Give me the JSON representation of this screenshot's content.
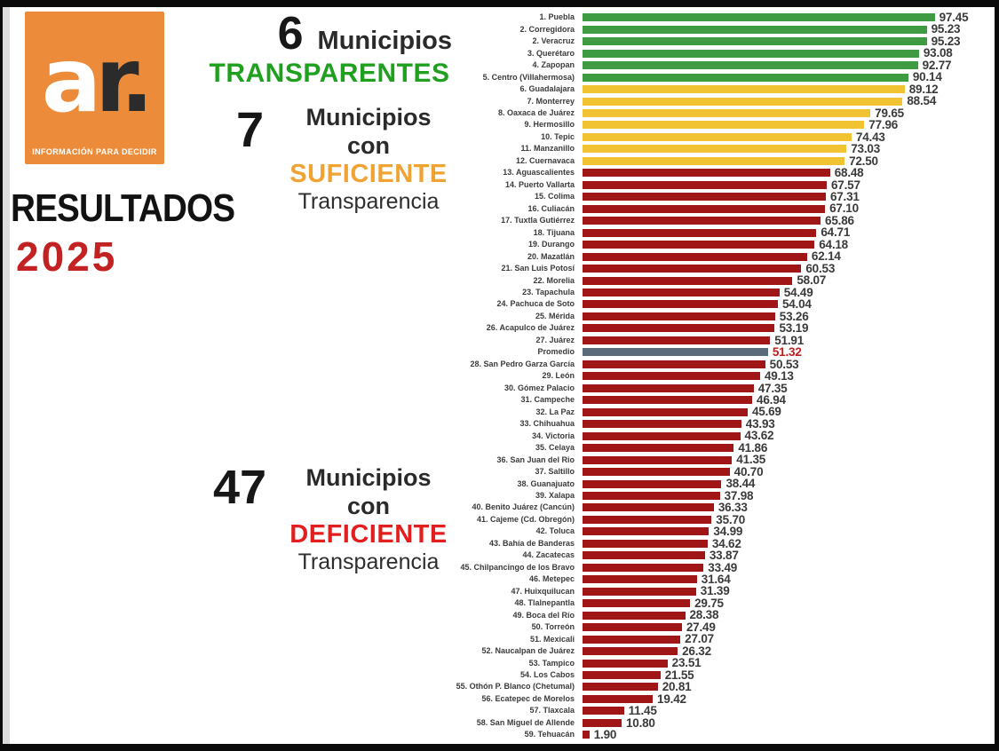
{
  "page": {
    "logo": {
      "letter_a": "a",
      "letter_r": "r.",
      "tagline": "INFORMACIÓN PARA DECIDIR",
      "bg_color": "#EC8C3B"
    },
    "title": "RESULTADOS",
    "year": "2025",
    "year_color": "#C22222",
    "annotations": [
      {
        "count": "6",
        "line1": "Municipios",
        "keyword": "TRANSPARENTES",
        "line2": "",
        "keyword_color": "#1FA01F"
      },
      {
        "count": "7",
        "line1": "Municipios con",
        "keyword": "SUFICIENTE",
        "line2": "Transparencia",
        "keyword_color": "#F0A232"
      },
      {
        "count": "47",
        "line1": "Municipios con",
        "keyword": "DEFICIENTE",
        "line2": "Transparencia",
        "keyword_color": "#E31E1E"
      }
    ]
  },
  "chart_data": {
    "type": "bar",
    "orientation": "horizontal",
    "value_range": [
      0,
      100
    ],
    "grid": false,
    "legend": false,
    "colors": {
      "green": "#3E9B41",
      "yellow": "#F1C232",
      "red": "#A01616",
      "gray": "#5B6B7B",
      "value_default": "#3A3A3A",
      "value_red": "#C41A1A"
    },
    "rows": [
      {
        "label": "1. Puebla",
        "value": 97.45,
        "color": "green"
      },
      {
        "label": "2. Corregidora",
        "value": 95.23,
        "color": "green"
      },
      {
        "label": "2. Veracruz",
        "value": 95.23,
        "color": "green"
      },
      {
        "label": "3. Querétaro",
        "value": 93.08,
        "color": "green"
      },
      {
        "label": "4. Zapopan",
        "value": 92.77,
        "color": "green"
      },
      {
        "label": "5. Centro (Villahermosa)",
        "value": 90.14,
        "color": "green"
      },
      {
        "label": "6. Guadalajara",
        "value": 89.12,
        "color": "yellow"
      },
      {
        "label": "7. Monterrey",
        "value": 88.54,
        "color": "yellow"
      },
      {
        "label": "8. Oaxaca de Juárez",
        "value": 79.65,
        "color": "yellow"
      },
      {
        "label": "9. Hermosillo",
        "value": 77.96,
        "color": "yellow"
      },
      {
        "label": "10. Tepic",
        "value": 74.43,
        "color": "yellow"
      },
      {
        "label": "11. Manzanillo",
        "value": 73.03,
        "color": "yellow"
      },
      {
        "label": "12. Cuernavaca",
        "value": 72.5,
        "color": "yellow"
      },
      {
        "label": "13. Aguascalientes",
        "value": 68.48,
        "color": "red"
      },
      {
        "label": "14. Puerto Vallarta",
        "value": 67.57,
        "color": "red"
      },
      {
        "label": "15. Colima",
        "value": 67.31,
        "color": "red"
      },
      {
        "label": "16. Culiacán",
        "value": 67.1,
        "color": "red"
      },
      {
        "label": "17. Tuxtla Gutiérrez",
        "value": 65.86,
        "color": "red"
      },
      {
        "label": "18. Tijuana",
        "value": 64.71,
        "color": "red"
      },
      {
        "label": "19. Durango",
        "value": 64.18,
        "color": "red"
      },
      {
        "label": "20. Mazatlán",
        "value": 62.14,
        "color": "red"
      },
      {
        "label": "21. San Luis Potosí",
        "value": 60.53,
        "color": "red"
      },
      {
        "label": "22. Morelia",
        "value": 58.07,
        "color": "red"
      },
      {
        "label": "23. Tapachula",
        "value": 54.49,
        "color": "red"
      },
      {
        "label": "24. Pachuca de Soto",
        "value": 54.04,
        "color": "red"
      },
      {
        "label": "25. Mérida",
        "value": 53.26,
        "color": "red"
      },
      {
        "label": "26. Acapulco de Juárez",
        "value": 53.19,
        "color": "red"
      },
      {
        "label": "27. Juárez",
        "value": 51.91,
        "color": "red"
      },
      {
        "label": "Promedio",
        "value": 51.32,
        "color": "gray",
        "value_color": "value_red"
      },
      {
        "label": "28. San Pedro Garza García",
        "value": 50.53,
        "color": "red"
      },
      {
        "label": "29. León",
        "value": 49.13,
        "color": "red"
      },
      {
        "label": "30. Gómez Palacio",
        "value": 47.35,
        "color": "red"
      },
      {
        "label": "31. Campeche",
        "value": 46.94,
        "color": "red"
      },
      {
        "label": "32. La Paz",
        "value": 45.69,
        "color": "red"
      },
      {
        "label": "33. Chihuahua",
        "value": 43.93,
        "color": "red"
      },
      {
        "label": "34. Victoria",
        "value": 43.62,
        "color": "red"
      },
      {
        "label": "35. Celaya",
        "value": 41.86,
        "color": "red"
      },
      {
        "label": "36. San Juan del Rio",
        "value": 41.35,
        "color": "red"
      },
      {
        "label": "37. Saltillo",
        "value": 40.7,
        "color": "red"
      },
      {
        "label": "38. Guanajuato",
        "value": 38.44,
        "color": "red"
      },
      {
        "label": "39. Xalapa",
        "value": 37.98,
        "color": "red"
      },
      {
        "label": "40. Benito Juárez (Cancún)",
        "value": 36.33,
        "color": "red"
      },
      {
        "label": "41. Cajeme (Cd. Obregón)",
        "value": 35.7,
        "color": "red"
      },
      {
        "label": "42. Toluca",
        "value": 34.99,
        "color": "red"
      },
      {
        "label": "43. Bahía de Banderas",
        "value": 34.62,
        "color": "red"
      },
      {
        "label": "44. Zacatecas",
        "value": 33.87,
        "color": "red"
      },
      {
        "label": "45. Chilpancingo de los Bravo",
        "value": 33.49,
        "color": "red"
      },
      {
        "label": "46. Metepec",
        "value": 31.64,
        "color": "red"
      },
      {
        "label": "47. Huixquilucan",
        "value": 31.39,
        "color": "red"
      },
      {
        "label": "48. Tlalnepantla",
        "value": 29.75,
        "color": "red"
      },
      {
        "label": "49. Boca del Río",
        "value": 28.38,
        "color": "red"
      },
      {
        "label": "50. Torreón",
        "value": 27.49,
        "color": "red"
      },
      {
        "label": "51. Mexicali",
        "value": 27.07,
        "color": "red"
      },
      {
        "label": "52. Naucalpan de Juárez",
        "value": 26.32,
        "color": "red"
      },
      {
        "label": "53. Tampico",
        "value": 23.51,
        "color": "red"
      },
      {
        "label": "54. Los Cabos",
        "value": 21.55,
        "color": "red"
      },
      {
        "label": "55. Othón P. Blanco (Chetumal)",
        "value": 20.81,
        "color": "red"
      },
      {
        "label": "56. Ecatepec de Morelos",
        "value": 19.42,
        "color": "red"
      },
      {
        "label": "57. Tlaxcala",
        "value": 11.45,
        "color": "red"
      },
      {
        "label": "58. San Miguel de Allende",
        "value": 10.8,
        "color": "red"
      },
      {
        "label": "59. Tehuacán",
        "value": 1.9,
        "color": "red"
      }
    ]
  }
}
